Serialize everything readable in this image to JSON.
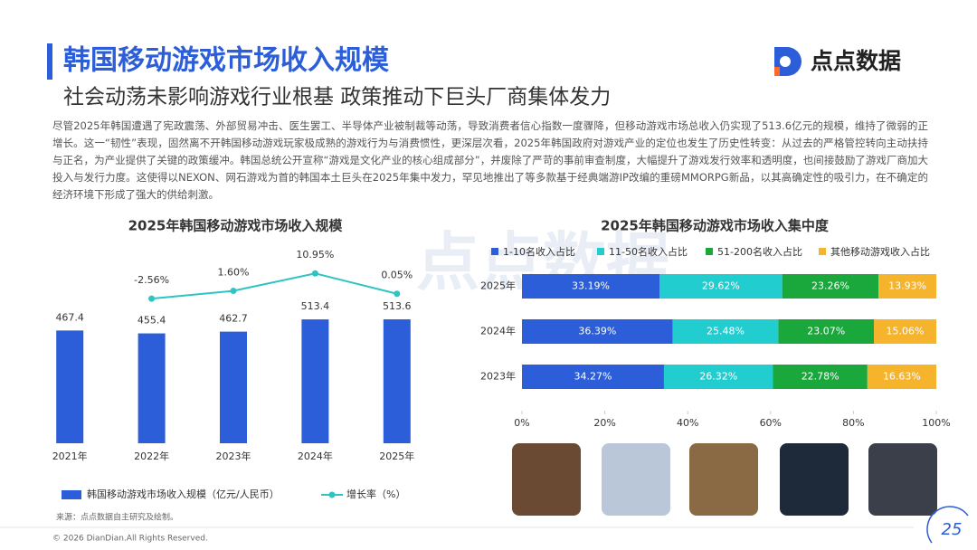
{
  "header": {
    "title": "韩国移动游戏市场收入规模",
    "subtitle": "社会动荡未影响游戏行业根基 政策推动下巨头厂商集体发力",
    "brand": "点点数据"
  },
  "body": "尽管2025年韩国遭遇了宪政震荡、外部贸易冲击、医生罢工、半导体产业被制裁等动荡，导致消费者信心指数一度骤降，但移动游戏市场总收入仍实现了513.6亿元的规模，维持了微弱的正增长。这一“韧性”表现，固然离不开韩国移动游戏玩家极成熟的游戏行为与消费惯性，更深层次看，2025年韩国政府对游戏产业的定位也发生了历史性转变：从过去的严格管控转向主动扶持与正名，为产业提供了关键的政策缓冲。韩国总统公开宣称“游戏是文化产业的核心组成部分”，并废除了严苛的事前审查制度，大幅提升了游戏发行效率和透明度，也间接鼓励了游戏厂商加大投入与发行力度。这使得以NEXON、网石游戏为首的韩国本土巨头在2025年集中发力，罕见地推出了等多款基于经典端游IP改编的重磅MMORPG新品，以其高确定性的吸引力，在不确定的经济环境下形成了强大的供给刺激。",
  "chart_data": [
    {
      "type": "bar",
      "title": "2025年韩国移动游戏市场收入规模",
      "categories": [
        "2021年",
        "2022年",
        "2023年",
        "2024年",
        "2025年"
      ],
      "series": [
        {
          "name": "韩国移动游戏市场收入规模（亿元/人民币）",
          "color": "#2b5ed8",
          "values": [
            467.4,
            455.4,
            462.7,
            513.4,
            513.6
          ]
        },
        {
          "name": "增长率（%）",
          "type": "line",
          "axis": "y2",
          "color": "#2ec4c4",
          "values": [
            null,
            -2.56,
            1.6,
            10.95,
            0.05
          ],
          "value_labels": [
            null,
            "-2.56%",
            "1.60%",
            "10.95%",
            "0.05%"
          ]
        }
      ],
      "ylim": [
        0,
        1200
      ],
      "y2lim": [
        -80,
        75
      ]
    },
    {
      "type": "stacked_hbar",
      "title": "2025年韩国移动游戏市场收入集中度",
      "categories": [
        "2025年",
        "2024年",
        "2023年"
      ],
      "series": [
        {
          "name": "1-10名收入占比",
          "color": "#2b5ed8",
          "values": [
            33.19,
            36.39,
            34.27
          ],
          "value_labels": [
            "33.19%",
            "36.39%",
            "34.27%"
          ]
        },
        {
          "name": "11-50名收入占比",
          "color": "#22cdd0",
          "values": [
            29.62,
            25.48,
            26.32
          ],
          "value_labels": [
            "29.62%",
            "25.48%",
            "26.32%"
          ]
        },
        {
          "name": "51-200名收入占比",
          "color": "#1aa83c",
          "values": [
            23.26,
            23.07,
            22.78
          ],
          "value_labels": [
            "23.26%",
            "23.07%",
            "22.78%"
          ]
        },
        {
          "name": "其他移动游戏收入占比",
          "color": "#f6b42c",
          "values": [
            13.93,
            15.06,
            16.63
          ],
          "value_labels": [
            "13.93%",
            "15.06%",
            "16.63%"
          ]
        }
      ],
      "xlim": [
        0,
        100
      ],
      "xticks": [
        {
          "value": 0,
          "label": "0%"
        },
        {
          "value": 20,
          "label": "20%"
        },
        {
          "value": 40,
          "label": "40%"
        },
        {
          "value": 60,
          "label": "60%"
        },
        {
          "value": 80,
          "label": "80%"
        },
        {
          "value": 100,
          "label": "100%"
        }
      ]
    }
  ],
  "source": "来源：点点数据自主研究及绘制。",
  "footer": "© 2026 DianDian.All Rights Reserved.",
  "page": 25
}
